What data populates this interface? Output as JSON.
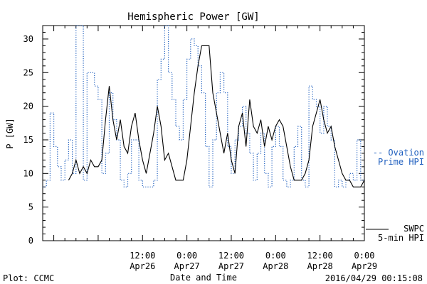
{
  "chart_data": {
    "type": "line",
    "title": "Hemispheric Power [GW]",
    "ylabel": "P [GW]",
    "xlabel": "Date and Time",
    "ylim": [
      0,
      32
    ],
    "yticks": [
      0,
      5,
      10,
      15,
      20,
      25,
      30
    ],
    "xlim": [
      "2016-04-25 09:00",
      "2016-04-29 00:00"
    ],
    "xticks": [
      {
        "at": "2016-04-26 12:00",
        "line1": "12:00",
        "line2": "Apr26"
      },
      {
        "at": "2016-04-27 00:00",
        "line1": "0:00",
        "line2": "Apr27"
      },
      {
        "at": "2016-04-27 12:00",
        "line1": "12:00",
        "line2": "Apr27"
      },
      {
        "at": "2016-04-28 00:00",
        "line1": "0:00",
        "line2": "Apr28"
      },
      {
        "at": "2016-04-28 12:00",
        "line1": "12:00",
        "line2": "Apr28"
      },
      {
        "at": "2016-04-29 00:00",
        "line1": "0:00",
        "line2": "Apr29"
      }
    ],
    "series": [
      {
        "name": "Ovation Prime HPI",
        "legend_lines": [
          "-- Ovation",
          "Prime HPI"
        ],
        "color": "#1f5fbf",
        "style": "dotted-step",
        "points": [
          [
            "2016-04-25 09:00",
            8
          ],
          [
            "2016-04-25 10:00",
            9
          ],
          [
            "2016-04-25 11:00",
            19
          ],
          [
            "2016-04-25 12:00",
            14
          ],
          [
            "2016-04-25 13:00",
            11
          ],
          [
            "2016-04-25 14:00",
            9
          ],
          [
            "2016-04-25 15:00",
            12
          ],
          [
            "2016-04-25 16:00",
            15
          ],
          [
            "2016-04-25 17:00",
            10
          ],
          [
            "2016-04-25 18:00",
            32
          ],
          [
            "2016-04-25 20:00",
            9
          ],
          [
            "2016-04-25 21:00",
            25
          ],
          [
            "2016-04-25 23:00",
            23
          ],
          [
            "2016-04-26 00:00",
            21
          ],
          [
            "2016-04-26 01:00",
            10
          ],
          [
            "2016-04-26 02:00",
            13
          ],
          [
            "2016-04-26 03:00",
            22
          ],
          [
            "2016-04-26 04:00",
            18
          ],
          [
            "2016-04-26 05:00",
            15
          ],
          [
            "2016-04-26 06:00",
            9
          ],
          [
            "2016-04-26 07:00",
            8
          ],
          [
            "2016-04-26 08:00",
            10
          ],
          [
            "2016-04-26 09:00",
            15
          ],
          [
            "2016-04-26 11:00",
            9
          ],
          [
            "2016-04-26 12:00",
            8
          ],
          [
            "2016-04-26 15:00",
            9
          ],
          [
            "2016-04-26 16:00",
            24
          ],
          [
            "2016-04-26 17:00",
            27
          ],
          [
            "2016-04-26 18:00",
            32
          ],
          [
            "2016-04-26 19:00",
            25
          ],
          [
            "2016-04-26 20:00",
            21
          ],
          [
            "2016-04-26 21:00",
            17
          ],
          [
            "2016-04-26 22:00",
            15
          ],
          [
            "2016-04-26 23:00",
            21
          ],
          [
            "2016-04-27 00:00",
            27
          ],
          [
            "2016-04-27 01:00",
            30
          ],
          [
            "2016-04-27 02:00",
            29
          ],
          [
            "2016-04-27 03:00",
            26
          ],
          [
            "2016-04-27 04:00",
            22
          ],
          [
            "2016-04-27 05:00",
            14
          ],
          [
            "2016-04-27 06:00",
            8
          ],
          [
            "2016-04-27 07:00",
            15
          ],
          [
            "2016-04-27 08:00",
            22
          ],
          [
            "2016-04-27 09:00",
            25
          ],
          [
            "2016-04-27 10:00",
            22
          ],
          [
            "2016-04-27 11:00",
            14
          ],
          [
            "2016-04-27 12:00",
            10
          ],
          [
            "2016-04-27 13:00",
            15
          ],
          [
            "2016-04-27 14:00",
            17
          ],
          [
            "2016-04-27 15:00",
            20
          ],
          [
            "2016-04-27 16:00",
            16
          ],
          [
            "2016-04-27 17:00",
            13
          ],
          [
            "2016-04-27 18:00",
            9
          ],
          [
            "2016-04-27 19:00",
            13
          ],
          [
            "2016-04-27 20:00",
            16
          ],
          [
            "2016-04-27 21:00",
            10
          ],
          [
            "2016-04-27 22:00",
            8
          ],
          [
            "2016-04-27 23:00",
            14
          ],
          [
            "2016-04-28 00:00",
            17
          ],
          [
            "2016-04-28 01:00",
            14
          ],
          [
            "2016-04-28 02:00",
            9
          ],
          [
            "2016-04-28 03:00",
            8
          ],
          [
            "2016-04-28 04:00",
            9
          ],
          [
            "2016-04-28 05:00",
            14
          ],
          [
            "2016-04-28 06:00",
            17
          ],
          [
            "2016-04-28 07:00",
            9
          ],
          [
            "2016-04-28 08:00",
            8
          ],
          [
            "2016-04-28 09:00",
            23
          ],
          [
            "2016-04-28 10:00",
            21
          ],
          [
            "2016-04-28 11:00",
            20
          ],
          [
            "2016-04-28 12:00",
            16
          ],
          [
            "2016-04-28 13:00",
            20
          ],
          [
            "2016-04-28 14:00",
            17
          ],
          [
            "2016-04-28 15:00",
            15
          ],
          [
            "2016-04-28 16:00",
            8
          ],
          [
            "2016-04-28 17:00",
            9
          ],
          [
            "2016-04-28 18:00",
            8
          ],
          [
            "2016-04-28 19:00",
            9
          ],
          [
            "2016-04-28 20:00",
            10
          ],
          [
            "2016-04-28 21:00",
            9
          ],
          [
            "2016-04-28 22:00",
            15
          ],
          [
            "2016-04-28 23:00",
            9
          ],
          [
            "2016-04-29 00:00",
            9
          ]
        ]
      },
      {
        "name": "SWPC 5-min HPI",
        "legend_lines": [
          "SWPC",
          "5-min HPI"
        ],
        "color": "#000000",
        "style": "solid",
        "points": [
          [
            "2016-04-25 16:00",
            9
          ],
          [
            "2016-04-25 17:00",
            10
          ],
          [
            "2016-04-25 18:00",
            12
          ],
          [
            "2016-04-25 19:00",
            10
          ],
          [
            "2016-04-25 20:00",
            11
          ],
          [
            "2016-04-25 21:00",
            10
          ],
          [
            "2016-04-25 22:00",
            12
          ],
          [
            "2016-04-25 23:00",
            11
          ],
          [
            "2016-04-26 00:00",
            11
          ],
          [
            "2016-04-26 01:00",
            12
          ],
          [
            "2016-04-26 02:00",
            18
          ],
          [
            "2016-04-26 03:00",
            23
          ],
          [
            "2016-04-26 04:00",
            18
          ],
          [
            "2016-04-26 05:00",
            15
          ],
          [
            "2016-04-26 06:00",
            18
          ],
          [
            "2016-04-26 07:00",
            14
          ],
          [
            "2016-04-26 08:00",
            13
          ],
          [
            "2016-04-26 09:00",
            17
          ],
          [
            "2016-04-26 10:00",
            19
          ],
          [
            "2016-04-26 11:00",
            15
          ],
          [
            "2016-04-26 12:00",
            12
          ],
          [
            "2016-04-26 13:00",
            10
          ],
          [
            "2016-04-26 14:00",
            13
          ],
          [
            "2016-04-26 15:00",
            16
          ],
          [
            "2016-04-26 16:00",
            20
          ],
          [
            "2016-04-26 17:00",
            17
          ],
          [
            "2016-04-26 18:00",
            12
          ],
          [
            "2016-04-26 19:00",
            13
          ],
          [
            "2016-04-26 20:00",
            11
          ],
          [
            "2016-04-26 21:00",
            9
          ],
          [
            "2016-04-26 22:00",
            9
          ],
          [
            "2016-04-26 23:00",
            9
          ],
          [
            "2016-04-27 00:00",
            12
          ],
          [
            "2016-04-27 01:00",
            17
          ],
          [
            "2016-04-27 02:00",
            22
          ],
          [
            "2016-04-27 03:00",
            26
          ],
          [
            "2016-04-27 04:00",
            29
          ],
          [
            "2016-04-27 05:00",
            29
          ],
          [
            "2016-04-27 06:00",
            29
          ],
          [
            "2016-04-27 07:00",
            22
          ],
          [
            "2016-04-27 08:00",
            19
          ],
          [
            "2016-04-27 09:00",
            16
          ],
          [
            "2016-04-27 10:00",
            13
          ],
          [
            "2016-04-27 11:00",
            16
          ],
          [
            "2016-04-27 12:00",
            12
          ],
          [
            "2016-04-27 13:00",
            10
          ],
          [
            "2016-04-27 14:00",
            17
          ],
          [
            "2016-04-27 15:00",
            19
          ],
          [
            "2016-04-27 16:00",
            14
          ],
          [
            "2016-04-27 17:00",
            21
          ],
          [
            "2016-04-27 18:00",
            17
          ],
          [
            "2016-04-27 19:00",
            16
          ],
          [
            "2016-04-27 20:00",
            18
          ],
          [
            "2016-04-27 21:00",
            14
          ],
          [
            "2016-04-27 22:00",
            17
          ],
          [
            "2016-04-27 23:00",
            15
          ],
          [
            "2016-04-28 00:00",
            17
          ],
          [
            "2016-04-28 01:00",
            18
          ],
          [
            "2016-04-28 02:00",
            17
          ],
          [
            "2016-04-28 03:00",
            14
          ],
          [
            "2016-04-28 04:00",
            11
          ],
          [
            "2016-04-28 05:00",
            9
          ],
          [
            "2016-04-28 06:00",
            9
          ],
          [
            "2016-04-28 07:00",
            9
          ],
          [
            "2016-04-28 08:00",
            10
          ],
          [
            "2016-04-28 09:00",
            12
          ],
          [
            "2016-04-28 10:00",
            17
          ],
          [
            "2016-04-28 11:00",
            19
          ],
          [
            "2016-04-28 12:00",
            21
          ],
          [
            "2016-04-28 13:00",
            18
          ],
          [
            "2016-04-28 14:00",
            16
          ],
          [
            "2016-04-28 15:00",
            17
          ],
          [
            "2016-04-28 16:00",
            14
          ],
          [
            "2016-04-28 17:00",
            12
          ],
          [
            "2016-04-28 18:00",
            10
          ],
          [
            "2016-04-28 19:00",
            9
          ],
          [
            "2016-04-28 20:00",
            9
          ],
          [
            "2016-04-28 21:00",
            8
          ],
          [
            "2016-04-28 22:00",
            8
          ],
          [
            "2016-04-28 23:00",
            8
          ],
          [
            "2016-04-29 00:00",
            9
          ]
        ]
      }
    ],
    "grid": false,
    "legend": "right"
  },
  "footer": {
    "plot_credit": "Plot: CCMC",
    "timestamp": "2016/04/29 00:15:08"
  },
  "colors": {
    "ovation": "#1f5fbf",
    "swpc": "#000000",
    "axes": "#000000"
  }
}
